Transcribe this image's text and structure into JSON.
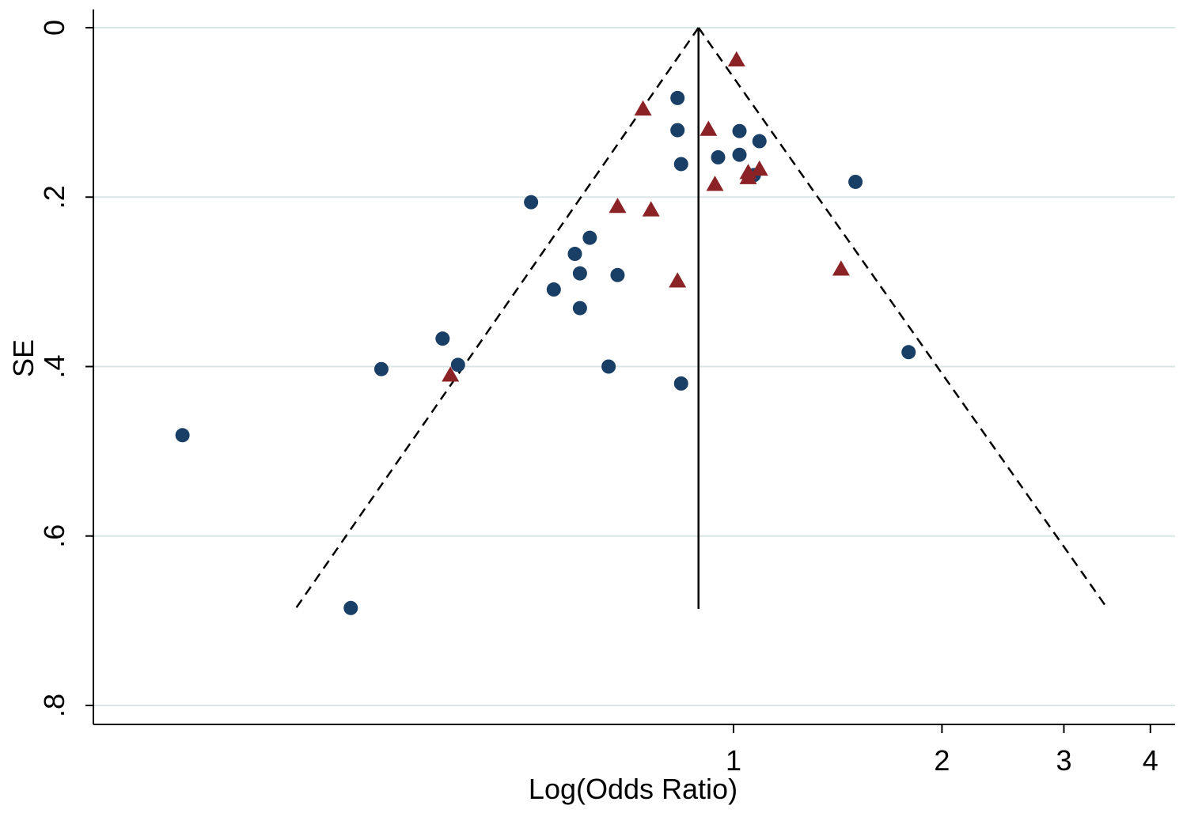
{
  "chart_data": {
    "type": "scatter",
    "title": "",
    "xlabel": "Log(Odds Ratio)",
    "ylabel": "SE",
    "x_scale": "log",
    "x_ticks": [
      {
        "value": 1,
        "label": "1"
      },
      {
        "value": 2,
        "label": "2"
      },
      {
        "value": 3,
        "label": "3"
      },
      {
        "value": 4,
        "label": "4"
      }
    ],
    "y_ticks": [
      {
        "value": 0,
        "label": "0"
      },
      {
        "value": 0.2,
        "label": ".2"
      },
      {
        "value": 0.4,
        "label": ".4"
      },
      {
        "value": 0.6,
        "label": ".6"
      },
      {
        "value": 0.8,
        "label": ".8"
      }
    ],
    "ylim": [
      0.82,
      -0.02
    ],
    "y_reversed": true,
    "grid": "horizontal",
    "colors": {
      "series_circle": "#1a3f66",
      "series_triangle": "#8b2326",
      "grid": "#d9e6e6"
    },
    "pooled_estimate": {
      "x": 0.89,
      "se_max": 0.686
    },
    "pseudo_ci_limits": {
      "left_x_at_max": 0.233,
      "right_x_at_max": 3.47,
      "se_max": 0.686
    },
    "series": [
      {
        "marker": "circle",
        "points": [
          {
            "x": 0.83,
            "y": 0.083
          },
          {
            "x": 0.83,
            "y": 0.121
          },
          {
            "x": 0.84,
            "y": 0.161
          },
          {
            "x": 0.95,
            "y": 0.153
          },
          {
            "x": 1.02,
            "y": 0.15
          },
          {
            "x": 1.02,
            "y": 0.122
          },
          {
            "x": 1.09,
            "y": 0.134
          },
          {
            "x": 1.07,
            "y": 0.174
          },
          {
            "x": 1.5,
            "y": 0.182
          },
          {
            "x": 1.79,
            "y": 0.383
          },
          {
            "x": 0.51,
            "y": 0.206
          },
          {
            "x": 0.62,
            "y": 0.248
          },
          {
            "x": 0.59,
            "y": 0.267
          },
          {
            "x": 0.6,
            "y": 0.29
          },
          {
            "x": 0.55,
            "y": 0.309
          },
          {
            "x": 0.6,
            "y": 0.331
          },
          {
            "x": 0.68,
            "y": 0.292
          },
          {
            "x": 0.66,
            "y": 0.4
          },
          {
            "x": 0.84,
            "y": 0.42
          },
          {
            "x": 0.38,
            "y": 0.367
          },
          {
            "x": 0.4,
            "y": 0.398
          },
          {
            "x": 0.31,
            "y": 0.403
          },
          {
            "x": 0.16,
            "y": 0.481
          },
          {
            "x": 0.28,
            "y": 0.685
          }
        ]
      },
      {
        "marker": "triangle",
        "points": [
          {
            "x": 1.01,
            "y": 0.038
          },
          {
            "x": 0.74,
            "y": 0.096
          },
          {
            "x": 0.92,
            "y": 0.12
          },
          {
            "x": 1.09,
            "y": 0.167
          },
          {
            "x": 1.05,
            "y": 0.171
          },
          {
            "x": 1.05,
            "y": 0.177
          },
          {
            "x": 0.94,
            "y": 0.185
          },
          {
            "x": 0.68,
            "y": 0.211
          },
          {
            "x": 0.76,
            "y": 0.215
          },
          {
            "x": 1.43,
            "y": 0.285
          },
          {
            "x": 0.83,
            "y": 0.299
          },
          {
            "x": 0.39,
            "y": 0.41
          }
        ]
      }
    ]
  }
}
